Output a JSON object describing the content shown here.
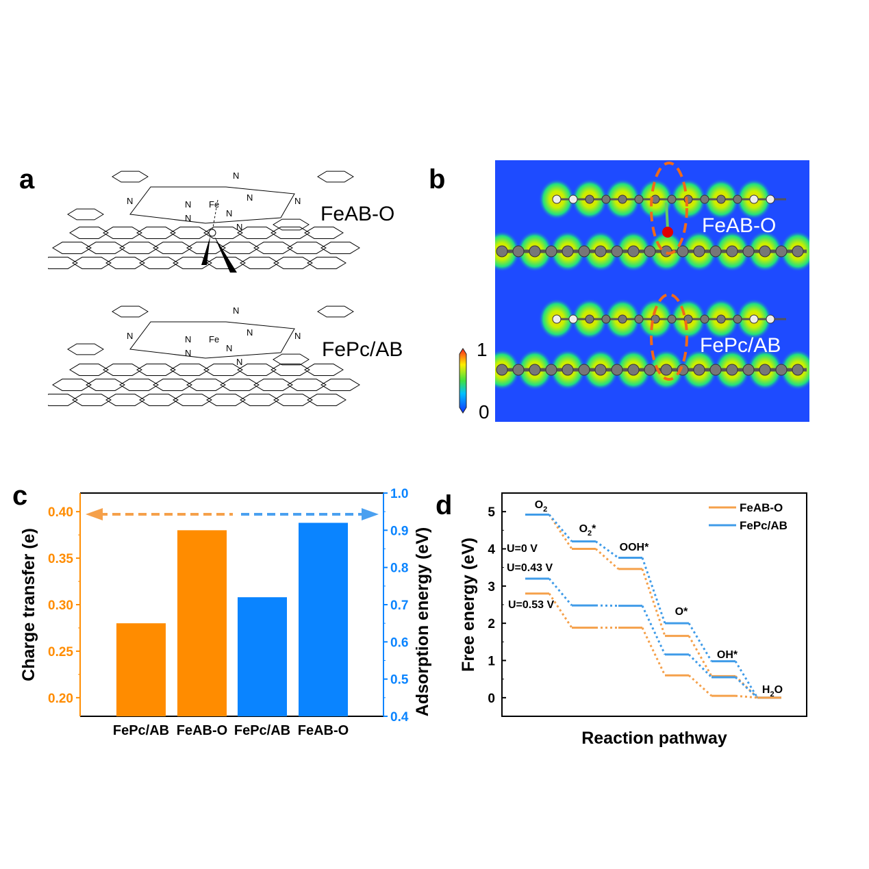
{
  "panels": {
    "a": {
      "letter": "a",
      "labels": [
        "FeAB-O",
        "FePc/AB"
      ],
      "atom_labels": {
        "N": "N",
        "Fe": "Fe",
        "O": "O"
      }
    },
    "b": {
      "letter": "b",
      "labels": [
        "FeAB-O",
        "FePc/AB"
      ],
      "colorbar": {
        "max": "1",
        "min": "0"
      }
    },
    "c": {
      "letter": "c"
    },
    "d": {
      "letter": "d"
    }
  },
  "colors": {
    "orange": "#FF8C00",
    "blue": "#0A84FF",
    "orange_line": "#F5A04A",
    "blue_line": "#3F9BE8",
    "map_bg": "#1E4BFF"
  },
  "chart_data": [
    {
      "type": "bar",
      "panel": "c",
      "categories": [
        "FePc/AB",
        "FeAB-O",
        "FePc/AB",
        "FeAB-O"
      ],
      "ylabel": "Charge transfer (e)",
      "y2label": "Adsorption energy (eV)",
      "ylim": [
        0.18,
        0.42
      ],
      "y2lim": [
        0.4,
        1.0
      ],
      "yticks": [
        "0.20",
        "0.25",
        "0.30",
        "0.35",
        "0.40"
      ],
      "y2ticks": [
        "0.4",
        "0.5",
        "0.6",
        "0.7",
        "0.8",
        "0.9",
        "1.0"
      ],
      "series": [
        {
          "axis": "left",
          "color": "#FF8C00",
          "values": [
            0.28,
            0.38,
            null,
            null
          ]
        },
        {
          "axis": "right",
          "color": "#0A84FF",
          "values": [
            null,
            null,
            0.72,
            0.92
          ]
        }
      ],
      "grid": false
    },
    {
      "type": "line",
      "panel": "d",
      "xlabel": "Reaction pathway",
      "ylabel": "Free energy (eV)",
      "ylim": [
        -0.5,
        5.5
      ],
      "yticks": [
        "0",
        "1",
        "2",
        "3",
        "4",
        "5"
      ],
      "steps": [
        "O2",
        "O2*",
        "OOH*",
        "O*",
        "OH*",
        "H2O"
      ],
      "step_labels": [
        {
          "main": "O",
          "sub": "2",
          "sup": ""
        },
        {
          "main": "O",
          "sub": "2",
          "sup": "*"
        },
        {
          "main": "OOH*",
          "sub": "",
          "sup": ""
        },
        {
          "main": "O*",
          "sub": "",
          "sup": ""
        },
        {
          "main": "OH*",
          "sub": "",
          "sup": ""
        },
        {
          "main": "H",
          "sub": "2",
          "sup": "O"
        }
      ],
      "potential_labels": [
        "U=0 V",
        "U=0.43 V",
        "U=0.53 V"
      ],
      "legend": {
        "position": "top-right",
        "entries": [
          "FeAB-O",
          "FePc/AB"
        ]
      },
      "series": [
        {
          "name": "FeAB-O",
          "potential": "U=0 V",
          "color": "#F5A04A",
          "values": [
            4.92,
            4.0,
            3.46,
            1.66,
            0.58,
            0
          ]
        },
        {
          "name": "FePc/AB",
          "potential": "U=0 V",
          "color": "#3F9BE8",
          "values": [
            4.92,
            4.2,
            3.76,
            2.0,
            0.98,
            0
          ]
        },
        {
          "name": "FePc/AB",
          "potential": "U=0.43 V",
          "color": "#3F9BE8",
          "values": [
            3.2,
            2.48,
            2.47,
            1.16,
            0.55,
            0
          ]
        },
        {
          "name": "FeAB-O",
          "potential": "U=0.53 V",
          "color": "#F5A04A",
          "values": [
            2.8,
            1.88,
            1.88,
            0.6,
            0.05,
            0
          ]
        }
      ],
      "grid": false
    }
  ]
}
